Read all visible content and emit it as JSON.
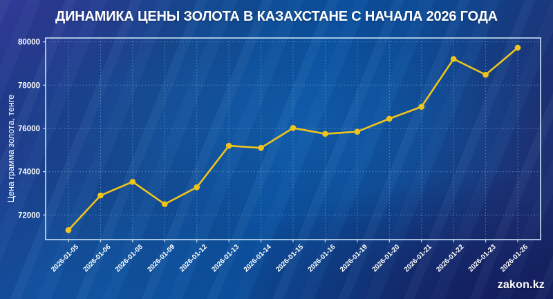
{
  "header": {
    "title": "ДИНАМИКА ЦЕНЫ ЗОЛОТА В КАЗАХСТАНЕ С НАЧАЛА 2026 ГОДА"
  },
  "footer": {
    "brand": "zakon.kz"
  },
  "colors": {
    "line": "#f0c41c",
    "marker": "#f0c41c",
    "grid": "#7db7e3",
    "spine": "#c9e2f4",
    "text": "#ffffff"
  },
  "chart_data": {
    "type": "line",
    "title": "ДИНАМИКА ЦЕНЫ ЗОЛОТА В КАЗАХСТАНЕ С НАЧАЛА 2026 ГОДА",
    "xlabel": "",
    "ylabel": "Цена грамма золота, тенге",
    "categories": [
      "2026-01-05",
      "2026-01-06",
      "2026-01-08",
      "2026-01-09",
      "2026-01-12",
      "2026-01-13",
      "2026-01-14",
      "2026-01-15",
      "2026-01-16",
      "2026-01-19",
      "2026-01-20",
      "2026-01-21",
      "2026-01-22",
      "2026-01-23",
      "2026-01-26"
    ],
    "values": [
      71300,
      72900,
      73530,
      72500,
      73280,
      75200,
      75100,
      76020,
      75750,
      75850,
      76450,
      77000,
      79210,
      78480,
      79730
    ],
    "yticks": [
      72000,
      74000,
      76000,
      78000,
      80000
    ],
    "ylim": [
      70860,
      80180
    ],
    "grid": true,
    "grid_style": "dotted",
    "legend_position": "none",
    "marker": "circle",
    "x_tick_rotation": 45
  }
}
